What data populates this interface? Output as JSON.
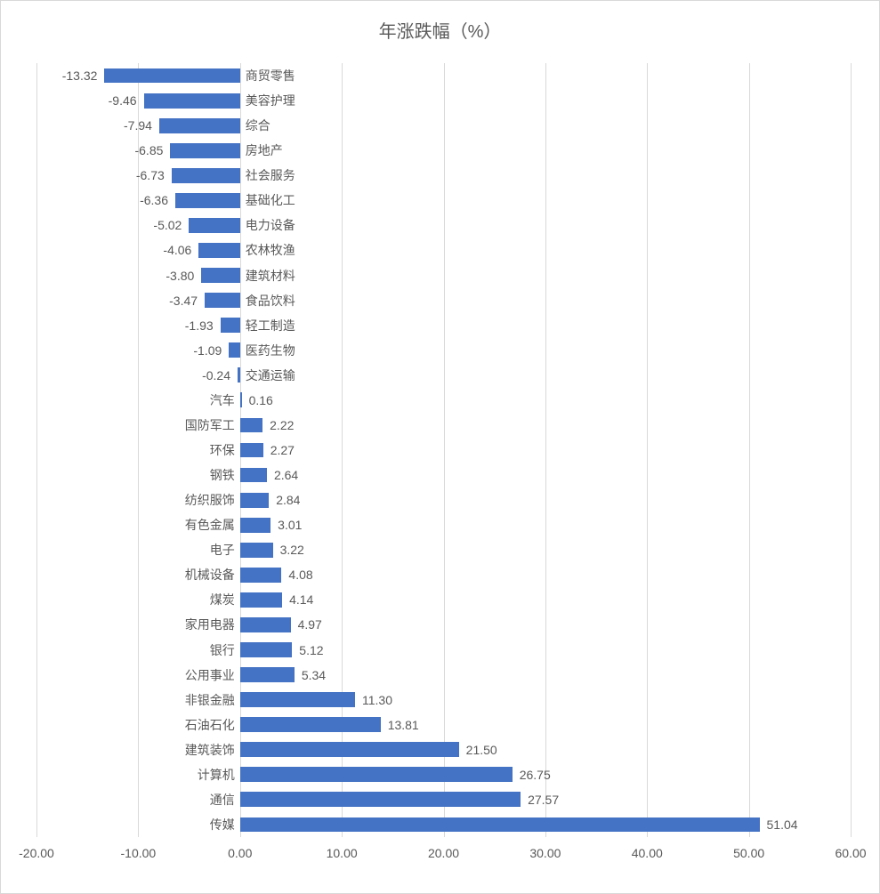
{
  "chart": {
    "title": "年涨跌幅（%）",
    "title_fontsize": 20,
    "title_color": "#595959",
    "type": "bar-horizontal",
    "background_color": "#ffffff",
    "border_color": "#d9d9d9",
    "bar_color": "#4472c4",
    "text_color": "#595959",
    "grid_color": "#d9d9d9",
    "label_fontsize": 14,
    "xlim": [
      -20,
      60
    ],
    "xtick_step": 10,
    "xtick_labels": [
      "-20.00",
      "-10.00",
      "0.00",
      "10.00",
      "20.00",
      "30.00",
      "40.00",
      "50.00",
      "60.00"
    ],
    "bar_height_ratio": 0.6,
    "data": [
      {
        "category": "商贸零售",
        "value": -13.32,
        "label": "-13.32"
      },
      {
        "category": "美容护理",
        "value": -9.46,
        "label": "-9.46"
      },
      {
        "category": "综合",
        "value": -7.94,
        "label": "-7.94"
      },
      {
        "category": "房地产",
        "value": -6.85,
        "label": "-6.85"
      },
      {
        "category": "社会服务",
        "value": -6.73,
        "label": "-6.73"
      },
      {
        "category": "基础化工",
        "value": -6.36,
        "label": "-6.36"
      },
      {
        "category": "电力设备",
        "value": -5.02,
        "label": "-5.02"
      },
      {
        "category": "农林牧渔",
        "value": -4.06,
        "label": "-4.06"
      },
      {
        "category": "建筑材料",
        "value": -3.8,
        "label": "-3.80"
      },
      {
        "category": "食品饮料",
        "value": -3.47,
        "label": "-3.47"
      },
      {
        "category": "轻工制造",
        "value": -1.93,
        "label": "-1.93"
      },
      {
        "category": "医药生物",
        "value": -1.09,
        "label": "-1.09"
      },
      {
        "category": "交通运输",
        "value": -0.24,
        "label": "-0.24"
      },
      {
        "category": "汽车",
        "value": 0.16,
        "label": "0.16"
      },
      {
        "category": "国防军工",
        "value": 2.22,
        "label": "2.22"
      },
      {
        "category": "环保",
        "value": 2.27,
        "label": "2.27"
      },
      {
        "category": "钢铁",
        "value": 2.64,
        "label": "2.64"
      },
      {
        "category": "纺织服饰",
        "value": 2.84,
        "label": "2.84"
      },
      {
        "category": "有色金属",
        "value": 3.01,
        "label": "3.01"
      },
      {
        "category": "电子",
        "value": 3.22,
        "label": "3.22"
      },
      {
        "category": "机械设备",
        "value": 4.08,
        "label": "4.08"
      },
      {
        "category": "煤炭",
        "value": 4.14,
        "label": "4.14"
      },
      {
        "category": "家用电器",
        "value": 4.97,
        "label": "4.97"
      },
      {
        "category": "银行",
        "value": 5.12,
        "label": "5.12"
      },
      {
        "category": "公用事业",
        "value": 5.34,
        "label": "5.34"
      },
      {
        "category": "非银金融",
        "value": 11.3,
        "label": "11.30"
      },
      {
        "category": "石油石化",
        "value": 13.81,
        "label": "13.81"
      },
      {
        "category": "建筑装饰",
        "value": 21.5,
        "label": "21.50"
      },
      {
        "category": "计算机",
        "value": 26.75,
        "label": "26.75"
      },
      {
        "category": "通信",
        "value": 27.57,
        "label": "27.57"
      },
      {
        "category": "传媒",
        "value": 51.04,
        "label": "51.04"
      }
    ]
  }
}
